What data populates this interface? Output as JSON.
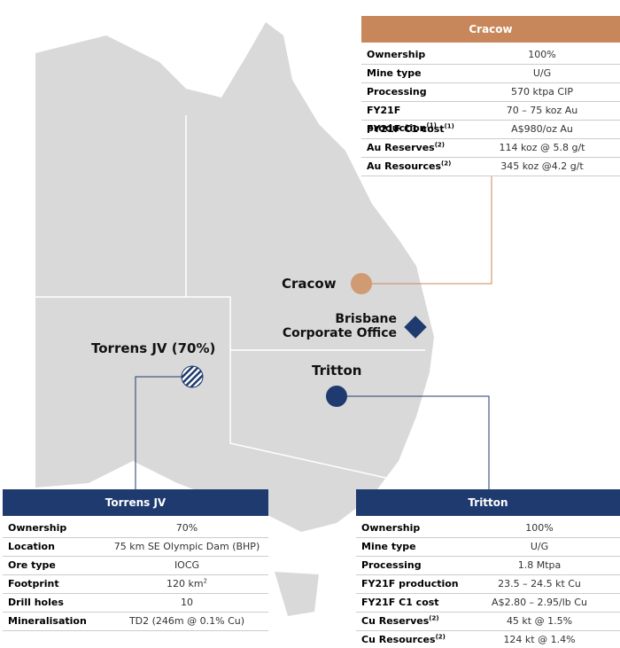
{
  "map_labels": {
    "cracow": "Cracow",
    "brisbane": [
      "Brisbane",
      "Corporate Office"
    ],
    "torrens": "Torrens JV (70%)",
    "tritton": "Tritton"
  },
  "tables": [
    {
      "title": "Cracow",
      "rows": [
        {
          "label": "Ownership",
          "value": "100%"
        },
        {
          "label": "Mine type",
          "value": "U/G"
        },
        {
          "label": "Processing",
          "value": "570 ktpa CIP"
        },
        {
          "label": "FY21F production",
          "note": "(1)",
          "value": "70 – 75 koz Au"
        },
        {
          "label": "FY21F C1 cost",
          "note": "(1)",
          "value": "A$980/oz Au"
        },
        {
          "label": "Au Reserves",
          "note": "(2)",
          "value": "114 koz @ 5.8 g/t"
        },
        {
          "label": "Au Resources",
          "note": "(2)",
          "value": "345 koz @4.2 g/t"
        }
      ]
    },
    {
      "title": "Torrens JV",
      "rows": [
        {
          "label": "Ownership",
          "value": "70%"
        },
        {
          "label": "Location",
          "value": "75 km SE Olympic Dam (BHP)"
        },
        {
          "label": "Ore type",
          "value": "IOCG"
        },
        {
          "label": "Footprint",
          "value": "120 km",
          "value_note": "2"
        },
        {
          "label": "Drill holes",
          "value": "10"
        },
        {
          "label": "Mineralisation",
          "value": "TD2 (246m @ 0.1% Cu)"
        }
      ]
    },
    {
      "title": "Tritton",
      "rows": [
        {
          "label": "Ownership",
          "value": "100%"
        },
        {
          "label": "Mine type",
          "value": "U/G"
        },
        {
          "label": "Processing",
          "value": "1.8 Mtpa"
        },
        {
          "label": "FY21F production",
          "value": "23.5 – 24.5 kt Cu"
        },
        {
          "label": "FY21F C1 cost",
          "value": "A$2.80 – 2.95/lb Cu"
        },
        {
          "label": "Cu Reserves",
          "note": "(2)",
          "value": "45 kt @ 1.5%"
        },
        {
          "label": "Cu Resources",
          "note": "(2)",
          "value": "124 kt @ 1.4%"
        }
      ]
    }
  ]
}
